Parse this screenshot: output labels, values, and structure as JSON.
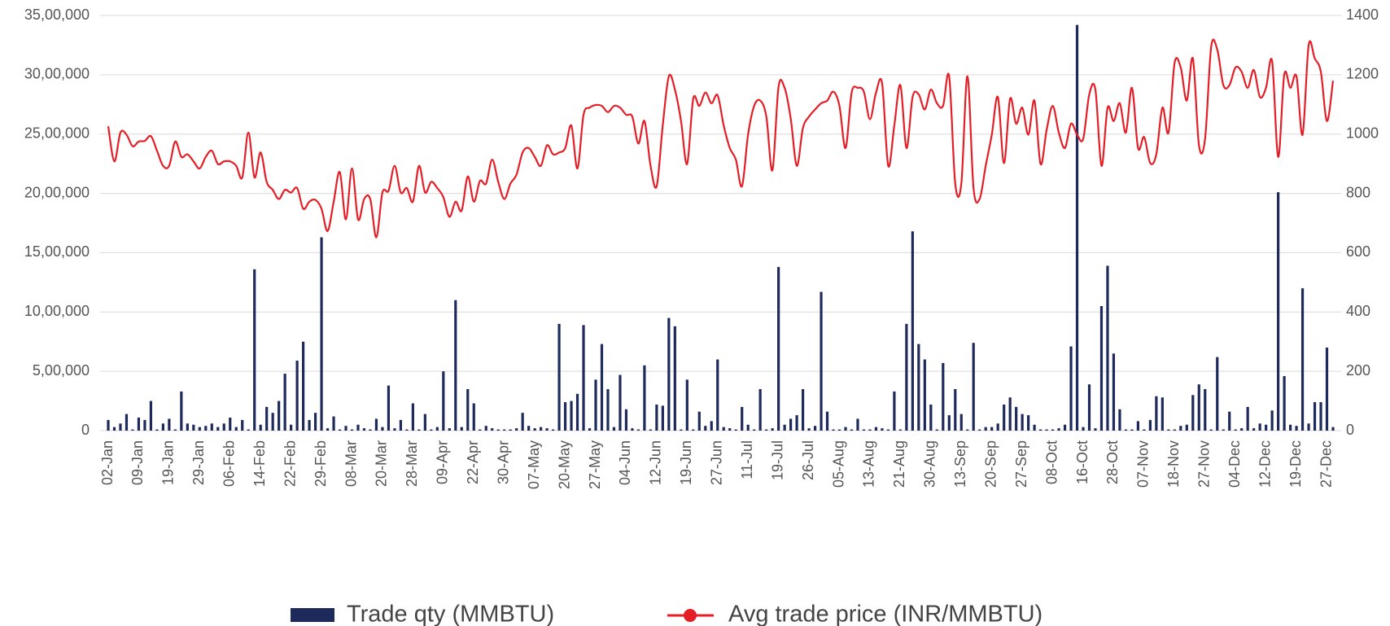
{
  "chart_data": {
    "type": "bar",
    "categories": [
      "02-Jan",
      null,
      null,
      null,
      null,
      "09-Jan",
      null,
      null,
      null,
      null,
      "19-Jan",
      null,
      null,
      null,
      null,
      "29-Jan",
      null,
      null,
      null,
      null,
      "06-Feb",
      null,
      null,
      null,
      null,
      "14-Feb",
      null,
      null,
      null,
      null,
      "22-Feb",
      null,
      null,
      null,
      null,
      "29-Feb",
      null,
      null,
      null,
      null,
      "08-Mar",
      null,
      null,
      null,
      null,
      "20-Mar",
      null,
      null,
      null,
      null,
      "28-Mar",
      null,
      null,
      null,
      null,
      "09-Apr",
      null,
      null,
      null,
      null,
      "22-Apr",
      null,
      null,
      null,
      null,
      "30-Apr",
      null,
      null,
      null,
      null,
      "07-May",
      null,
      null,
      null,
      null,
      "20-May",
      null,
      null,
      null,
      null,
      "27-May",
      null,
      null,
      null,
      null,
      "04-Jun",
      null,
      null,
      null,
      null,
      "12-Jun",
      null,
      null,
      null,
      null,
      "19-Jun",
      null,
      null,
      null,
      null,
      "27-Jun",
      null,
      null,
      null,
      null,
      "11-Jul",
      null,
      null,
      null,
      null,
      "19-Jul",
      null,
      null,
      null,
      null,
      "26-Jul",
      null,
      null,
      null,
      null,
      "05-Aug",
      null,
      null,
      null,
      null,
      "13-Aug",
      null,
      null,
      null,
      null,
      "21-Aug",
      null,
      null,
      null,
      null,
      "30-Aug",
      null,
      null,
      null,
      null,
      "13-Sep",
      null,
      null,
      null,
      null,
      "20-Sep",
      null,
      null,
      null,
      null,
      "27-Sep",
      null,
      null,
      null,
      null,
      "08-Oct",
      null,
      null,
      null,
      null,
      "16-Oct",
      null,
      null,
      null,
      null,
      "28-Oct",
      null,
      null,
      null,
      null,
      "07-Nov",
      null,
      null,
      null,
      null,
      "18-Nov",
      null,
      null,
      null,
      null,
      "27-Nov",
      null,
      null,
      null,
      null,
      "04-Dec",
      null,
      null,
      null,
      null,
      "12-Dec",
      null,
      null,
      null,
      null,
      "19-Dec",
      null,
      null,
      null,
      null,
      "27-Dec",
      null
    ],
    "series": [
      {
        "name": "Trade qty (MMBTU)",
        "color": "#1f2a5c",
        "type": "bar",
        "values": [
          90000,
          30000,
          60000,
          140000,
          10000,
          110000,
          90000,
          250000,
          10000,
          60000,
          100000,
          10000,
          330000,
          60000,
          50000,
          30000,
          40000,
          60000,
          30000,
          60000,
          110000,
          30000,
          90000,
          10000,
          1360000,
          50000,
          200000,
          150000,
          250000,
          480000,
          50000,
          590000,
          750000,
          90000,
          150000,
          1630000,
          20000,
          120000,
          10000,
          40000,
          10000,
          50000,
          20000,
          10000,
          100000,
          30000,
          380000,
          20000,
          90000,
          10000,
          230000,
          10000,
          140000,
          10000,
          30000,
          500000,
          20000,
          1100000,
          30000,
          350000,
          230000,
          10000,
          40000,
          20000,
          10000,
          10000,
          10000,
          20000,
          150000,
          40000,
          20000,
          30000,
          20000,
          10000,
          900000,
          240000,
          250000,
          310000,
          890000,
          20000,
          430000,
          730000,
          350000,
          30000,
          470000,
          180000,
          20000,
          10000,
          550000,
          10000,
          220000,
          210000,
          950000,
          880000,
          10000,
          430000,
          10000,
          160000,
          40000,
          80000,
          600000,
          30000,
          20000,
          10000,
          200000,
          50000,
          10000,
          350000,
          10000,
          20000,
          1380000,
          50000,
          100000,
          130000,
          350000,
          20000,
          40000,
          1170000,
          160000,
          10000,
          10000,
          30000,
          10000,
          100000,
          10000,
          10000,
          30000,
          20000,
          10000,
          330000,
          10000,
          900000,
          1680000,
          730000,
          600000,
          220000,
          10000,
          570000,
          130000,
          350000,
          140000,
          10000,
          740000,
          10000,
          30000,
          30000,
          60000,
          220000,
          280000,
          200000,
          140000,
          130000,
          50000,
          10000,
          10000,
          10000,
          20000,
          50000,
          710000,
          3420000,
          30000,
          390000,
          20000,
          1050000,
          1390000,
          650000,
          180000,
          10000,
          10000,
          80000,
          10000,
          90000,
          290000,
          280000,
          10000,
          10000,
          40000,
          50000,
          300000,
          390000,
          350000,
          10000,
          620000,
          10000,
          160000,
          10000,
          20000,
          200000,
          20000,
          60000,
          50000,
          170000,
          2010000,
          460000,
          50000,
          40000,
          1200000,
          60000,
          240000,
          240000,
          700000,
          30000
        ]
      },
      {
        "name": "Avg trade price (INR/MMBTU)",
        "color": "#e41e26",
        "type": "line",
        "axis": "y2",
        "values": [
          1026,
          908,
          1005,
          998,
          959,
          975,
          977,
          993,
          944,
          893,
          893,
          975,
          923,
          932,
          908,
          884,
          923,
          944,
          899,
          908,
          908,
          893,
          854,
          1005,
          854,
          938,
          839,
          812,
          781,
          812,
          803,
          818,
          748,
          772,
          778,
          748,
          673,
          772,
          872,
          712,
          884,
          712,
          781,
          781,
          652,
          803,
          809,
          893,
          803,
          818,
          772,
          893,
          803,
          839,
          818,
          787,
          721,
          772,
          742,
          857,
          772,
          842,
          833,
          914,
          839,
          781,
          833,
          863,
          938,
          953,
          923,
          893,
          962,
          932,
          938,
          953,
          1029,
          884,
          1065,
          1089,
          1098,
          1095,
          1074,
          1095,
          1089,
          1065,
          1059,
          968,
          1044,
          893,
          824,
          1029,
          1195,
          1150,
          1044,
          899,
          1119,
          1095,
          1140,
          1104,
          1131,
          1029,
          953,
          914,
          824,
          998,
          1095,
          1113,
          1059,
          878,
          1159,
          1156,
          1053,
          893,
          1020,
          1059,
          1083,
          1104,
          1113,
          1143,
          1095,
          953,
          1140,
          1156,
          1143,
          1050,
          1140,
          1171,
          893,
          1029,
          1165,
          953,
          1125,
          1134,
          1083,
          1150,
          1104,
          1095,
          1195,
          833,
          833,
          1195,
          818,
          781,
          893,
          998,
          1125,
          902,
          1119,
          1035,
          1089,
          998,
          1113,
          899,
          1014,
          1095,
          1005,
          953,
          1035,
          998,
          984,
          1134,
          1150,
          893,
          1089,
          1044,
          1104,
          1005,
          1156,
          953,
          990,
          902,
          932,
          1089,
          1005,
          1240,
          1225,
          1113,
          1255,
          962,
          984,
          1294,
          1285,
          1165,
          1165,
          1225,
          1210,
          1156,
          1216,
          1125,
          1156,
          1246,
          923,
          1201,
          1156,
          1195,
          998,
          1300,
          1255,
          1210,
          1044,
          1180
        ]
      }
    ],
    "ylim": [
      0,
      3500000
    ],
    "yticks": [
      0,
      {
        "value": 500000,
        "label": "5,00,000"
      },
      {
        "value": 1000000,
        "label": "10,00,000"
      },
      {
        "value": 1500000,
        "label": "15,00,000"
      },
      {
        "value": 2000000,
        "label": "20,00,000"
      },
      {
        "value": 2500000,
        "label": "25,00,000"
      },
      {
        "value": 3000000,
        "label": "30,00,000"
      },
      {
        "value": 3500000,
        "label": "35,00,000"
      }
    ],
    "y2lim": [
      0,
      1400
    ],
    "y2ticks": [
      0,
      200,
      400,
      600,
      800,
      1000,
      1200,
      1400
    ],
    "grid": true,
    "legend": "bottom"
  }
}
